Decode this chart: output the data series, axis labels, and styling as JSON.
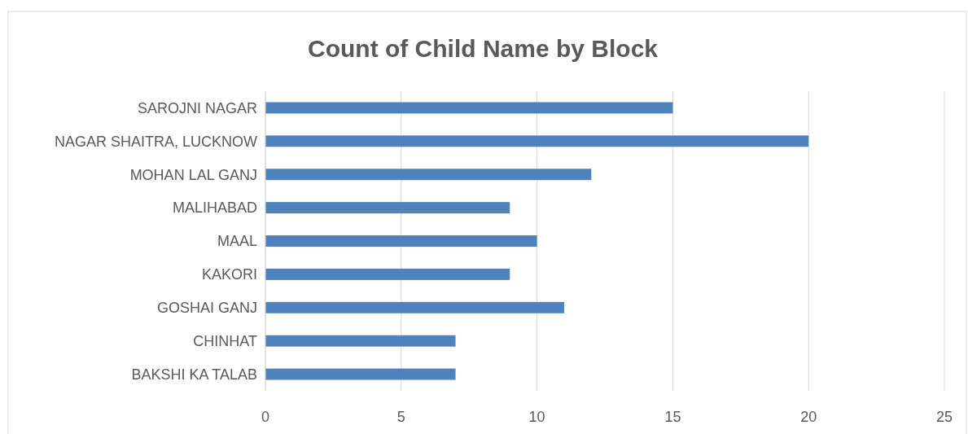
{
  "chart_data": {
    "type": "bar",
    "orientation": "horizontal",
    "title": "Count of Child Name by Block",
    "categories": [
      "SAROJNI NAGAR",
      "NAGAR SHAITRA, LUCKNOW",
      "MOHAN LAL GANJ",
      "MALIHABAD",
      "MAAL",
      "KAKORI",
      "GOSHAI GANJ",
      "CHINHAT",
      "BAKSHI KA TALAB"
    ],
    "values": [
      15,
      20,
      12,
      9,
      10,
      9,
      11,
      7,
      7
    ],
    "color": "#4f81bd",
    "xlim": [
      0,
      25
    ],
    "xticks": [
      0,
      5,
      10,
      15,
      20,
      25
    ],
    "grid": "x"
  }
}
